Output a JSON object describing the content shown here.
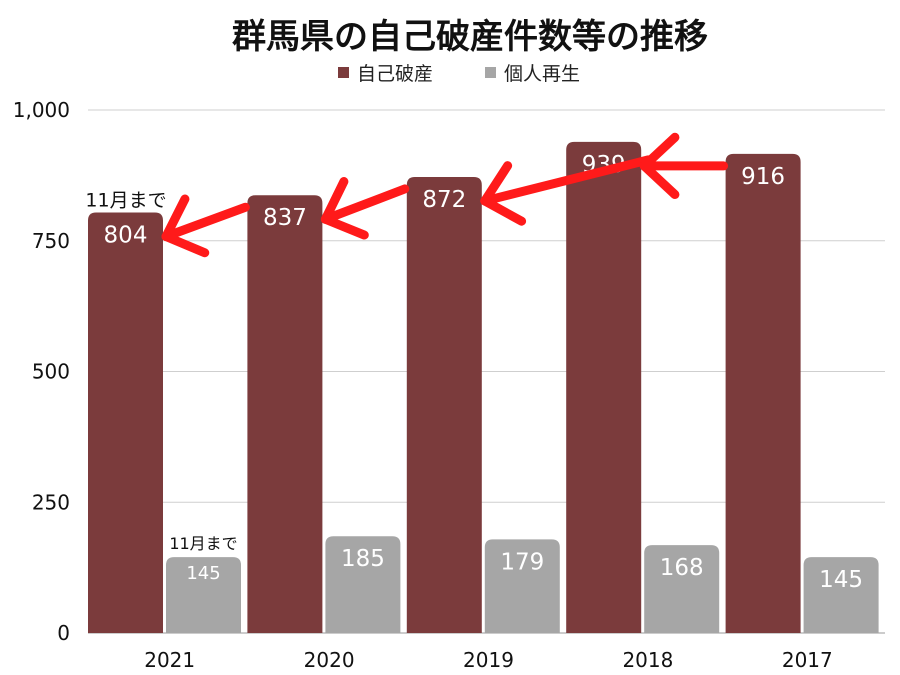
{
  "chart_data": {
    "type": "bar",
    "title": "群馬県の自己破産件数等の推移",
    "categories": [
      "2021",
      "2020",
      "2019",
      "2018",
      "2017"
    ],
    "series": [
      {
        "name": "自己破産",
        "values": [
          804,
          837,
          872,
          939,
          916
        ],
        "color": "#7b3b3c"
      },
      {
        "name": "個人再生",
        "values": [
          145,
          185,
          179,
          168,
          145
        ],
        "color": "#a6a6a6"
      }
    ],
    "ylim": [
      0,
      1000
    ],
    "yticks": [
      0,
      250,
      500,
      750,
      1000
    ],
    "ytick_labels": [
      "0",
      "250",
      "500",
      "750",
      "1,000"
    ],
    "grid": true,
    "legend": "top-center",
    "annotations": [
      {
        "text": "11月まで",
        "series": 0,
        "category": "2021"
      },
      {
        "text": "11月まで",
        "series": 1,
        "category": "2021"
      }
    ],
    "arrows_color": "#ff1a1a"
  }
}
